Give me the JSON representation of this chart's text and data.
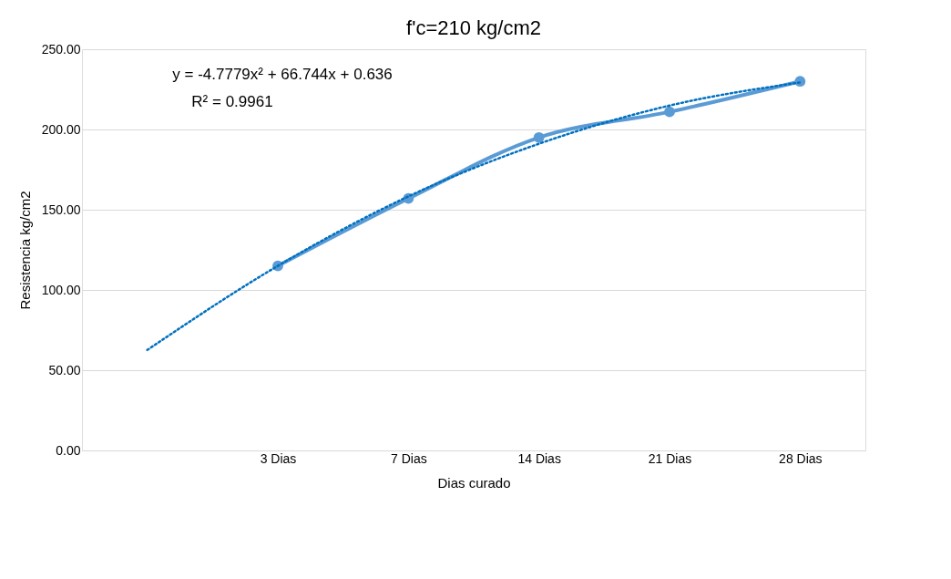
{
  "chart_data": {
    "type": "line",
    "title": "f'c=210 kg/cm2",
    "xlabel": "Dias curado",
    "ylabel": "Resistencia kg/cm2",
    "categories": [
      null,
      "3 Dias",
      "7 Dias",
      "14 Dias",
      "21 Dias",
      "28 Dias"
    ],
    "series": [
      {
        "color": "#5b9bd5",
        "marker": "circle",
        "line_style": "solid",
        "values": [
          null,
          115,
          157,
          195,
          211,
          230
        ]
      },
      {
        "color": "#0070c0",
        "marker": "none",
        "line_style": "dotted",
        "values": [
          62.6,
          115,
          158.3,
          191.1,
          214.9,
          229.3
        ]
      }
    ],
    "ylim": [
      0,
      250
    ],
    "yticks": [
      {
        "value": 0,
        "label": "0.00"
      },
      {
        "value": 50,
        "label": "50.00"
      },
      {
        "value": 100,
        "label": "100.00"
      },
      {
        "value": 150,
        "label": "150.00"
      },
      {
        "value": 200,
        "label": "200.00"
      },
      {
        "value": 250,
        "label": "250.00"
      }
    ],
    "grid": "y",
    "annotations": [
      "y = -4.7779x² + 66.744x + 0.636",
      "R² = 0.9961"
    ]
  }
}
